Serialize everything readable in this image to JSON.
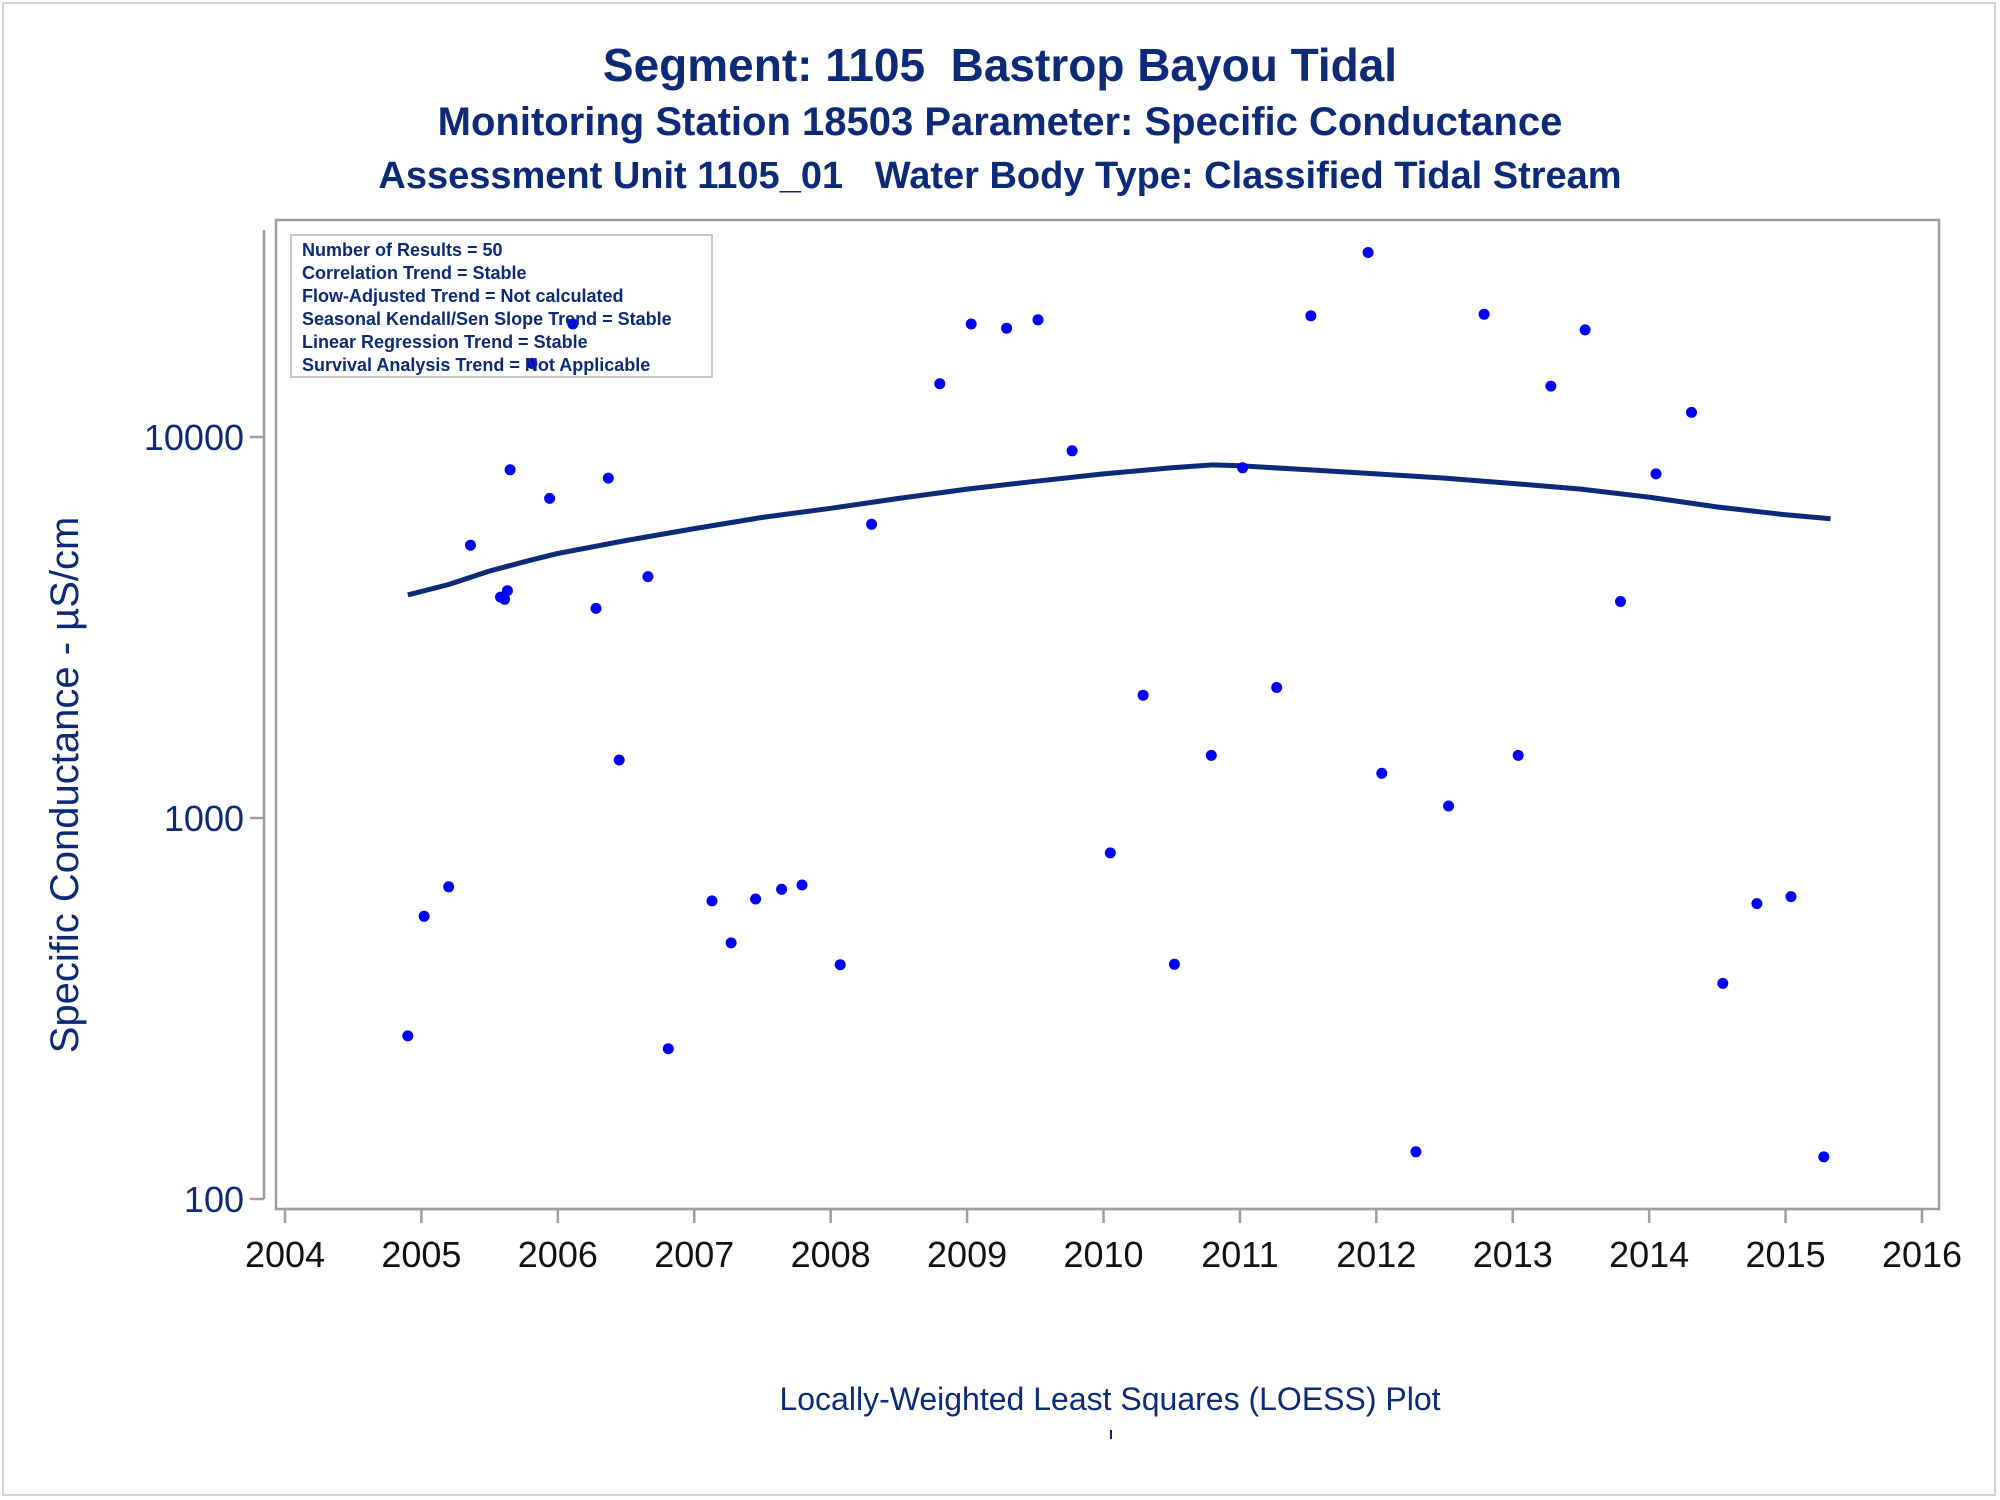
{
  "titles": {
    "line1": "Segment: 1105  Bastrop Bayou Tidal",
    "line2": "Monitoring Station 18503 Parameter: Specific Conductance",
    "line3": "Assessment Unit 1105_01   Water Body Type: Classified Tidal Stream"
  },
  "footnote": "Locally-Weighted Least Squares (LOESS) Plot",
  "colors": {
    "text": "#0c2a78",
    "points": "#0000ff",
    "loess": "#0c2a78",
    "axis": "#9e9e9e"
  },
  "chart_data": {
    "type": "scatter",
    "title": "",
    "xlabel": "",
    "ylabel": "Specific Conductance -  µS/cm",
    "xlim": [
      2004,
      2016
    ],
    "ylim": [
      100,
      25000
    ],
    "yscale": "log",
    "x_ticks": [
      "2004",
      "2005",
      "2006",
      "2007",
      "2008",
      "2009",
      "2010",
      "2011",
      "2012",
      "2013",
      "2014",
      "2015",
      "2016"
    ],
    "y_ticks": [
      "100",
      "1000",
      "10000"
    ],
    "grid": false,
    "legend": "none",
    "info_box": {
      "position": "top-left",
      "lines": [
        "Number of Results = 50",
        "Correlation Trend = Stable",
        "Flow-Adjusted Trend = Not calculated",
        "Seasonal Kendall/Sen Slope Trend = Stable",
        "Linear Regression Trend = Stable",
        "Survival Analysis Trend = Not Applicable"
      ]
    },
    "series": [
      {
        "type": "scatter",
        "points": [
          [
            2004.9,
            268
          ],
          [
            2005.02,
            552
          ],
          [
            2005.2,
            660
          ],
          [
            2005.36,
            5200
          ],
          [
            2005.58,
            3800
          ],
          [
            2005.61,
            3750
          ],
          [
            2005.63,
            3950
          ],
          [
            2005.65,
            8200
          ],
          [
            2005.81,
            15600
          ],
          [
            2005.94,
            6900
          ],
          [
            2006.11,
            19800
          ],
          [
            2006.28,
            3550
          ],
          [
            2006.37,
            7800
          ],
          [
            2006.45,
            1420
          ],
          [
            2006.66,
            4300
          ],
          [
            2006.81,
            248
          ],
          [
            2007.13,
            606
          ],
          [
            2007.27,
            470
          ],
          [
            2007.45,
            613
          ],
          [
            2007.64,
            650
          ],
          [
            2007.79,
            667
          ],
          [
            2008.07,
            412
          ],
          [
            2008.3,
            5900
          ],
          [
            2008.8,
            13800
          ],
          [
            2009.03,
            19800
          ],
          [
            2009.29,
            19300
          ],
          [
            2009.52,
            20300
          ],
          [
            2009.77,
            9200
          ],
          [
            2010.05,
            810
          ],
          [
            2010.29,
            2100
          ],
          [
            2010.52,
            413
          ],
          [
            2010.79,
            1460
          ],
          [
            2011.02,
            8300
          ],
          [
            2011.27,
            2200
          ],
          [
            2011.52,
            20800
          ],
          [
            2011.94,
            30500
          ],
          [
            2012.04,
            1310
          ],
          [
            2012.29,
            133
          ],
          [
            2012.53,
            1075
          ],
          [
            2012.79,
            21000
          ],
          [
            2013.04,
            1460
          ],
          [
            2013.28,
            13600
          ],
          [
            2013.53,
            19100
          ],
          [
            2013.79,
            3700
          ],
          [
            2014.05,
            8000
          ],
          [
            2014.31,
            11600
          ],
          [
            2014.54,
            368
          ],
          [
            2014.79,
            596
          ],
          [
            2015.04,
            622
          ],
          [
            2015.28,
            129
          ]
        ]
      },
      {
        "type": "line",
        "name": "",
        "points": [
          [
            2004.9,
            3850
          ],
          [
            2005.2,
            4100
          ],
          [
            2005.5,
            4450
          ],
          [
            2005.8,
            4750
          ],
          [
            2006.0,
            4950
          ],
          [
            2006.5,
            5350
          ],
          [
            2007.0,
            5750
          ],
          [
            2007.5,
            6150
          ],
          [
            2008.0,
            6500
          ],
          [
            2008.5,
            6900
          ],
          [
            2009.0,
            7300
          ],
          [
            2009.5,
            7650
          ],
          [
            2010.0,
            8000
          ],
          [
            2010.5,
            8300
          ],
          [
            2010.8,
            8450
          ],
          [
            2011.0,
            8400
          ],
          [
            2011.5,
            8200
          ],
          [
            2012.0,
            8000
          ],
          [
            2012.5,
            7800
          ],
          [
            2013.0,
            7550
          ],
          [
            2013.5,
            7300
          ],
          [
            2014.0,
            6950
          ],
          [
            2014.5,
            6550
          ],
          [
            2015.0,
            6250
          ],
          [
            2015.33,
            6100
          ]
        ]
      }
    ]
  }
}
